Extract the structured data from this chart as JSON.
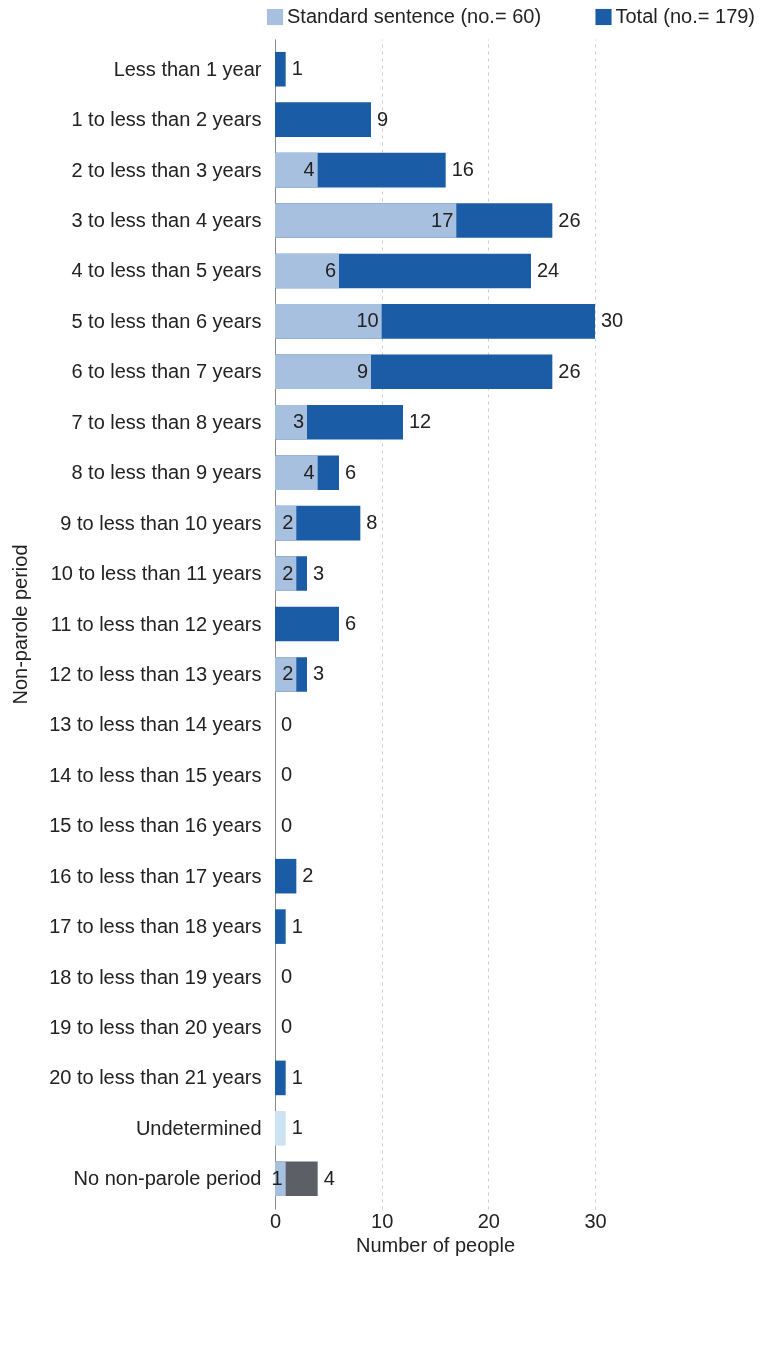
{
  "chart_data": {
    "type": "bar",
    "orientation": "horizontal",
    "xlabel": "Number of people",
    "ylabel": "Non-parole period",
    "categories": [
      "Less than 1 year",
      "1 to less than 2 years",
      "2 to less than 3 years",
      "3 to less than 4 years",
      "4 to less than 5 years",
      "5 to less than 6 years",
      "6 to less than 7 years",
      "7 to less than 8 years",
      "8 to less than 9 years",
      "9 to less than 10 years",
      "10 to less than 11 years",
      "11 to less than 12 years",
      "12 to less than 13 years",
      "13 to less than 14 years",
      "14 to less than 15 years",
      "15 to less than 16 years",
      "16 to less than 17 years",
      "17 to less than 18 years",
      "18 to less than 19 years",
      "19 to less than 20 years",
      "20 to less than 21 years",
      "Undetermined",
      "No non-parole period"
    ],
    "series": [
      {
        "name": "Total (no.= 179)",
        "color": "#1a5ca6",
        "colors": [
          "#1a5ca6",
          "#1a5ca6",
          "#1a5ca6",
          "#1a5ca6",
          "#1a5ca6",
          "#1a5ca6",
          "#1a5ca6",
          "#1a5ca6",
          "#1a5ca6",
          "#1a5ca6",
          "#1a5ca6",
          "#1a5ca6",
          "#1a5ca6",
          "#1a5ca6",
          "#1a5ca6",
          "#1a5ca6",
          "#1a5ca6",
          "#1a5ca6",
          "#1a5ca6",
          "#1a5ca6",
          "#1a5ca6",
          "#cde3f4",
          "#5c5f66"
        ],
        "values": [
          1,
          9,
          16,
          26,
          24,
          30,
          26,
          12,
          6,
          8,
          3,
          6,
          3,
          0,
          0,
          0,
          2,
          1,
          0,
          0,
          1,
          1,
          4
        ]
      },
      {
        "name": "Standard sentence (no.= 60)",
        "color": "#a8c0e0",
        "values": [
          null,
          null,
          4,
          17,
          6,
          10,
          9,
          3,
          4,
          2,
          2,
          null,
          2,
          null,
          null,
          null,
          null,
          null,
          null,
          null,
          null,
          null,
          1
        ]
      }
    ],
    "xlim": [
      0,
      30
    ],
    "xticks": [
      0,
      10,
      20,
      30
    ],
    "grid": "x",
    "legend": "top",
    "data_labels": true
  }
}
